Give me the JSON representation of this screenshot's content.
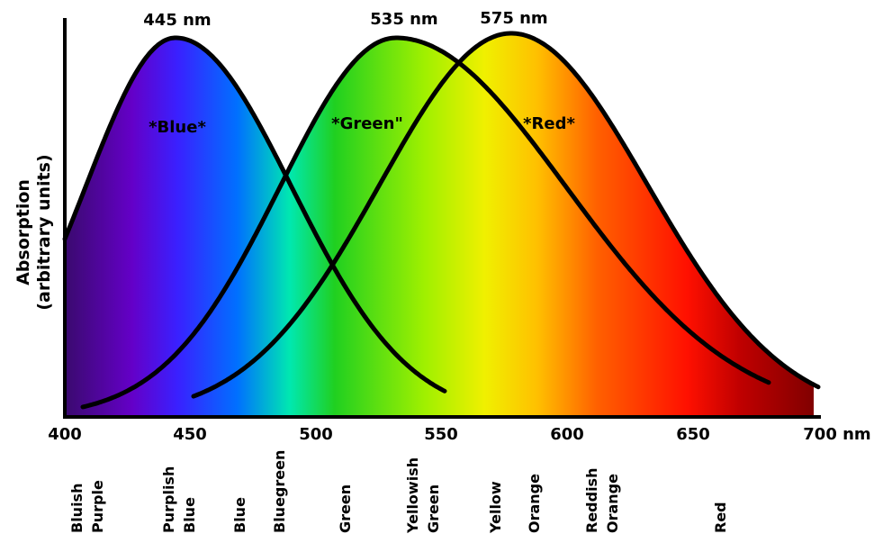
{
  "peaks": [
    "445 nm",
    "535 nm",
    "575 nm"
  ],
  "curve_labels": [
    "*Blue*",
    "*Green\"",
    "*Red*"
  ],
  "y_axis_label": [
    "Absorption",
    "(arbitrary units)"
  ],
  "x_ticks": [
    "400",
    "450",
    "500",
    "550",
    "600",
    "650",
    "700 nm"
  ],
  "color_names": [
    [
      "Bluish",
      "Purple"
    ],
    [
      "Purplish",
      "Blue"
    ],
    [
      "Blue"
    ],
    [
      "Bluegreen"
    ],
    [
      "Green"
    ],
    [
      "Yellowish",
      "Green"
    ],
    [
      "Yellow"
    ],
    [
      "Orange"
    ],
    [
      "Reddish",
      "Orange"
    ],
    [
      "Red"
    ]
  ]
}
